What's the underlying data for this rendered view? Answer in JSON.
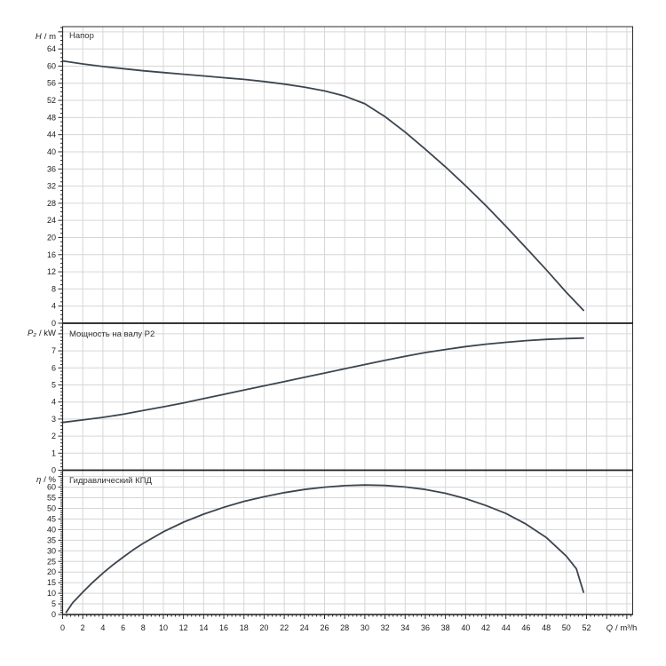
{
  "colors": {
    "background": "#ffffff",
    "curve": "#3b4550",
    "grid": "#d6d6d6",
    "axis": "#2b2b2b",
    "separator": "#1a1a1a",
    "text": "#1a1a1a"
  },
  "chart_data": {
    "type": "line",
    "layout": "three stacked panels sharing one x axis, grid on, no legend",
    "x_axis": {
      "var": "Q",
      "unit": "/ m³/h",
      "range": [
        0,
        56.6
      ],
      "major_step": 2,
      "minor_step": 0.4,
      "tick_labels": [
        0,
        2,
        4,
        6,
        8,
        10,
        12,
        14,
        16,
        18,
        20,
        22,
        24,
        26,
        28,
        30,
        32,
        34,
        36,
        38,
        40,
        42,
        44,
        46,
        48,
        50,
        52
      ]
    },
    "panels": [
      {
        "id": "head",
        "title": "Напор",
        "y_var": "H",
        "y_unit": "/ m",
        "range": [
          0,
          69.2
        ],
        "major_step": 4,
        "minor_step": 1,
        "tick_labels": [
          0,
          4,
          8,
          12,
          16,
          20,
          24,
          28,
          32,
          36,
          40,
          44,
          48,
          52,
          56,
          60,
          64
        ],
        "series": [
          {
            "name": "Напор",
            "points": [
              [
                0,
                61.2
              ],
              [
                2,
                60.5
              ],
              [
                4,
                59.9
              ],
              [
                6,
                59.4
              ],
              [
                8,
                58.9
              ],
              [
                10,
                58.5
              ],
              [
                12,
                58.1
              ],
              [
                14,
                57.7
              ],
              [
                16,
                57.3
              ],
              [
                18,
                56.9
              ],
              [
                20,
                56.4
              ],
              [
                22,
                55.8
              ],
              [
                24,
                55.1
              ],
              [
                26,
                54.2
              ],
              [
                28,
                53.0
              ],
              [
                30,
                51.2
              ],
              [
                32,
                48.2
              ],
              [
                34,
                44.6
              ],
              [
                36,
                40.6
              ],
              [
                38,
                36.5
              ],
              [
                40,
                32.1
              ],
              [
                42,
                27.5
              ],
              [
                44,
                22.6
              ],
              [
                46,
                17.6
              ],
              [
                48,
                12.5
              ],
              [
                50,
                7.2
              ],
              [
                51.7,
                3.0
              ]
            ]
          }
        ]
      },
      {
        "id": "power",
        "title": "Мощность на валу P2",
        "y_var": "P₂",
        "y_unit": "/ kW",
        "range": [
          0,
          8.62
        ],
        "major_step": 1,
        "minor_step": 0.2,
        "tick_labels": [
          0,
          1,
          2,
          3,
          4,
          5,
          6,
          7
        ],
        "series": [
          {
            "name": "Мощность на валу P2",
            "points": [
              [
                0,
                2.8
              ],
              [
                2,
                2.95
              ],
              [
                4,
                3.1
              ],
              [
                6,
                3.28
              ],
              [
                8,
                3.5
              ],
              [
                10,
                3.72
              ],
              [
                12,
                3.95
              ],
              [
                14,
                4.2
              ],
              [
                16,
                4.45
              ],
              [
                18,
                4.7
              ],
              [
                20,
                4.95
              ],
              [
                22,
                5.2
              ],
              [
                24,
                5.45
              ],
              [
                26,
                5.7
              ],
              [
                28,
                5.95
              ],
              [
                30,
                6.2
              ],
              [
                32,
                6.45
              ],
              [
                34,
                6.68
              ],
              [
                36,
                6.9
              ],
              [
                38,
                7.08
              ],
              [
                40,
                7.25
              ],
              [
                42,
                7.39
              ],
              [
                44,
                7.5
              ],
              [
                46,
                7.6
              ],
              [
                48,
                7.67
              ],
              [
                50,
                7.72
              ],
              [
                51.7,
                7.75
              ]
            ]
          }
        ]
      },
      {
        "id": "efficiency",
        "title": "Гидравлический КПД",
        "y_var": "η",
        "y_unit": "/ %",
        "range": [
          0,
          68
        ],
        "major_step": 5,
        "minor_step": 1,
        "tick_labels": [
          0,
          5,
          10,
          15,
          20,
          25,
          30,
          35,
          40,
          45,
          50,
          55,
          60
        ],
        "series": [
          {
            "name": "Гидравлический КПД",
            "points": [
              [
                0.35,
                1
              ],
              [
                1,
                5.5
              ],
              [
                2,
                10.5
              ],
              [
                3,
                15.2
              ],
              [
                4,
                19.5
              ],
              [
                5,
                23.4
              ],
              [
                6,
                27
              ],
              [
                7,
                30.4
              ],
              [
                8,
                33.5
              ],
              [
                10,
                39
              ],
              [
                12,
                43.5
              ],
              [
                14,
                47.3
              ],
              [
                16,
                50.5
              ],
              [
                18,
                53.3
              ],
              [
                20,
                55.5
              ],
              [
                22,
                57.4
              ],
              [
                24,
                58.9
              ],
              [
                26,
                60
              ],
              [
                28,
                60.7
              ],
              [
                30,
                61
              ],
              [
                32,
                60.8
              ],
              [
                34,
                60.1
              ],
              [
                36,
                58.9
              ],
              [
                38,
                57.1
              ],
              [
                40,
                54.6
              ],
              [
                42,
                51.4
              ],
              [
                44,
                47.6
              ],
              [
                46,
                42.6
              ],
              [
                48,
                36.3
              ],
              [
                50,
                27.5
              ],
              [
                51,
                21.5
              ],
              [
                51.7,
                10.5
              ]
            ]
          }
        ]
      }
    ]
  }
}
